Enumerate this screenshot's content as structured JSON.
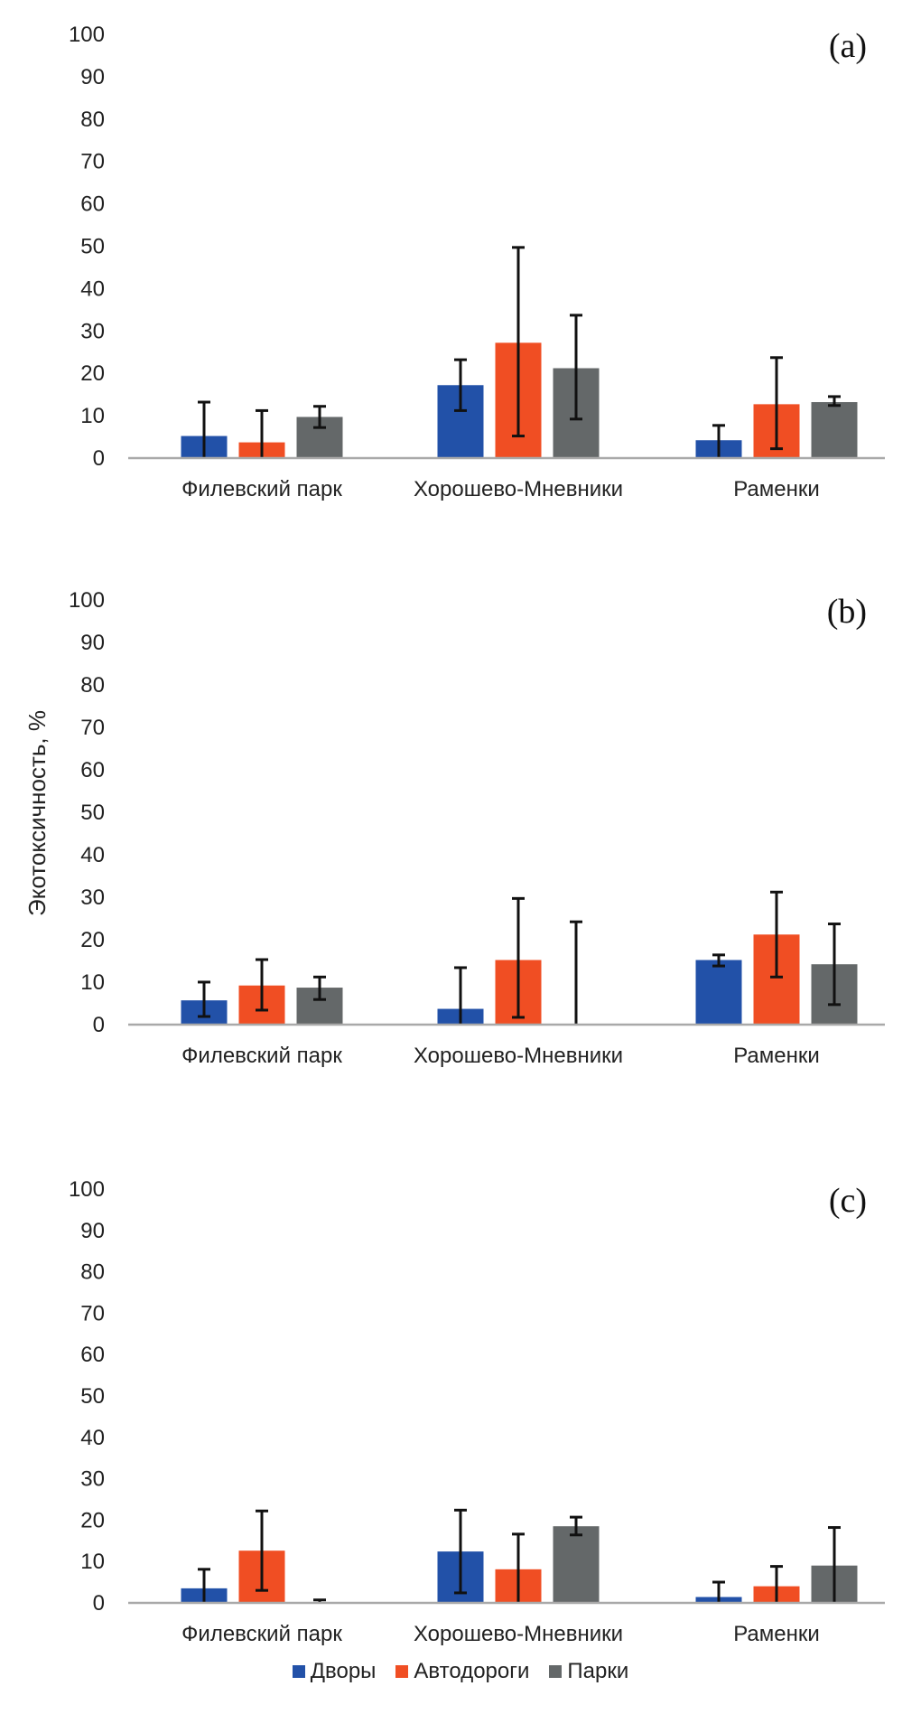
{
  "chart_data": {
    "type": "bar",
    "ylabel": "Экотоксичность, %",
    "ylim": [
      0,
      100
    ],
    "yticks": [
      "0",
      "10",
      "20",
      "30",
      "40",
      "50",
      "60",
      "70",
      "80",
      "90",
      "100"
    ],
    "grid": false,
    "legend_placement": "bottom-center",
    "series_names": [
      "Дворы",
      "Автодороги",
      "Парки"
    ],
    "series_colors": [
      "#2251a8",
      "#f04e23",
      "#646869"
    ],
    "categories": [
      "Филевский парк",
      "Хорошево-Мневники",
      "Раменки"
    ],
    "panels": [
      {
        "label": "(a)",
        "series": [
          {
            "name": "Дворы",
            "values": [
              5,
              17,
              4
            ],
            "err_high": [
              13,
              23,
              7.5
            ],
            "err_low": [
              0,
              11,
              0
            ]
          },
          {
            "name": "Автодороги",
            "values": [
              3.5,
              27,
              12.5
            ],
            "err_high": [
              11,
              49.5,
              23.5
            ],
            "err_low": [
              0,
              5,
              2
            ]
          },
          {
            "name": "Парки",
            "values": [
              9.5,
              21,
              13
            ],
            "err_high": [
              12,
              33.5,
              14.3
            ],
            "err_low": [
              7,
              9,
              12.2
            ]
          }
        ]
      },
      {
        "label": "(b)",
        "series": [
          {
            "name": "Дворы",
            "values": [
              5.5,
              3.5,
              15
            ],
            "err_high": [
              9.8,
              13.2,
              16.2
            ],
            "err_low": [
              1.7,
              0,
              13.6
            ]
          },
          {
            "name": "Автодороги",
            "values": [
              9,
              15,
              21
            ],
            "err_high": [
              15.1,
              29.5,
              31
            ],
            "err_low": [
              3.2,
              1.5,
              11
            ]
          },
          {
            "name": "Парки",
            "values": [
              8.5,
              0,
              14
            ],
            "err_high": [
              11,
              24,
              23.5
            ],
            "err_low": [
              5.7,
              0,
              4.5
            ]
          }
        ]
      },
      {
        "label": "(c)",
        "series": [
          {
            "name": "Дворы",
            "values": [
              3.3,
              12.2,
              1.2
            ],
            "err_high": [
              7.9,
              22.2,
              4.8
            ],
            "err_low": [
              0,
              2.2,
              0
            ]
          },
          {
            "name": "Автодороги",
            "values": [
              12.4,
              7.9,
              3.8
            ],
            "err_high": [
              22,
              16.4,
              8.6
            ],
            "err_low": [
              2.8,
              0,
              0
            ]
          },
          {
            "name": "Парки",
            "values": [
              0,
              18.3,
              8.8
            ],
            "err_high": [
              0.5,
              20.5,
              18
            ],
            "err_low": [
              0,
              16.2,
              0
            ]
          }
        ]
      }
    ]
  },
  "legend": {
    "items": [
      {
        "label": "Дворы",
        "color": "#2251a8"
      },
      {
        "label": "Автодороги",
        "color": "#f04e23"
      },
      {
        "label": "Парки",
        "color": "#646869"
      }
    ]
  }
}
